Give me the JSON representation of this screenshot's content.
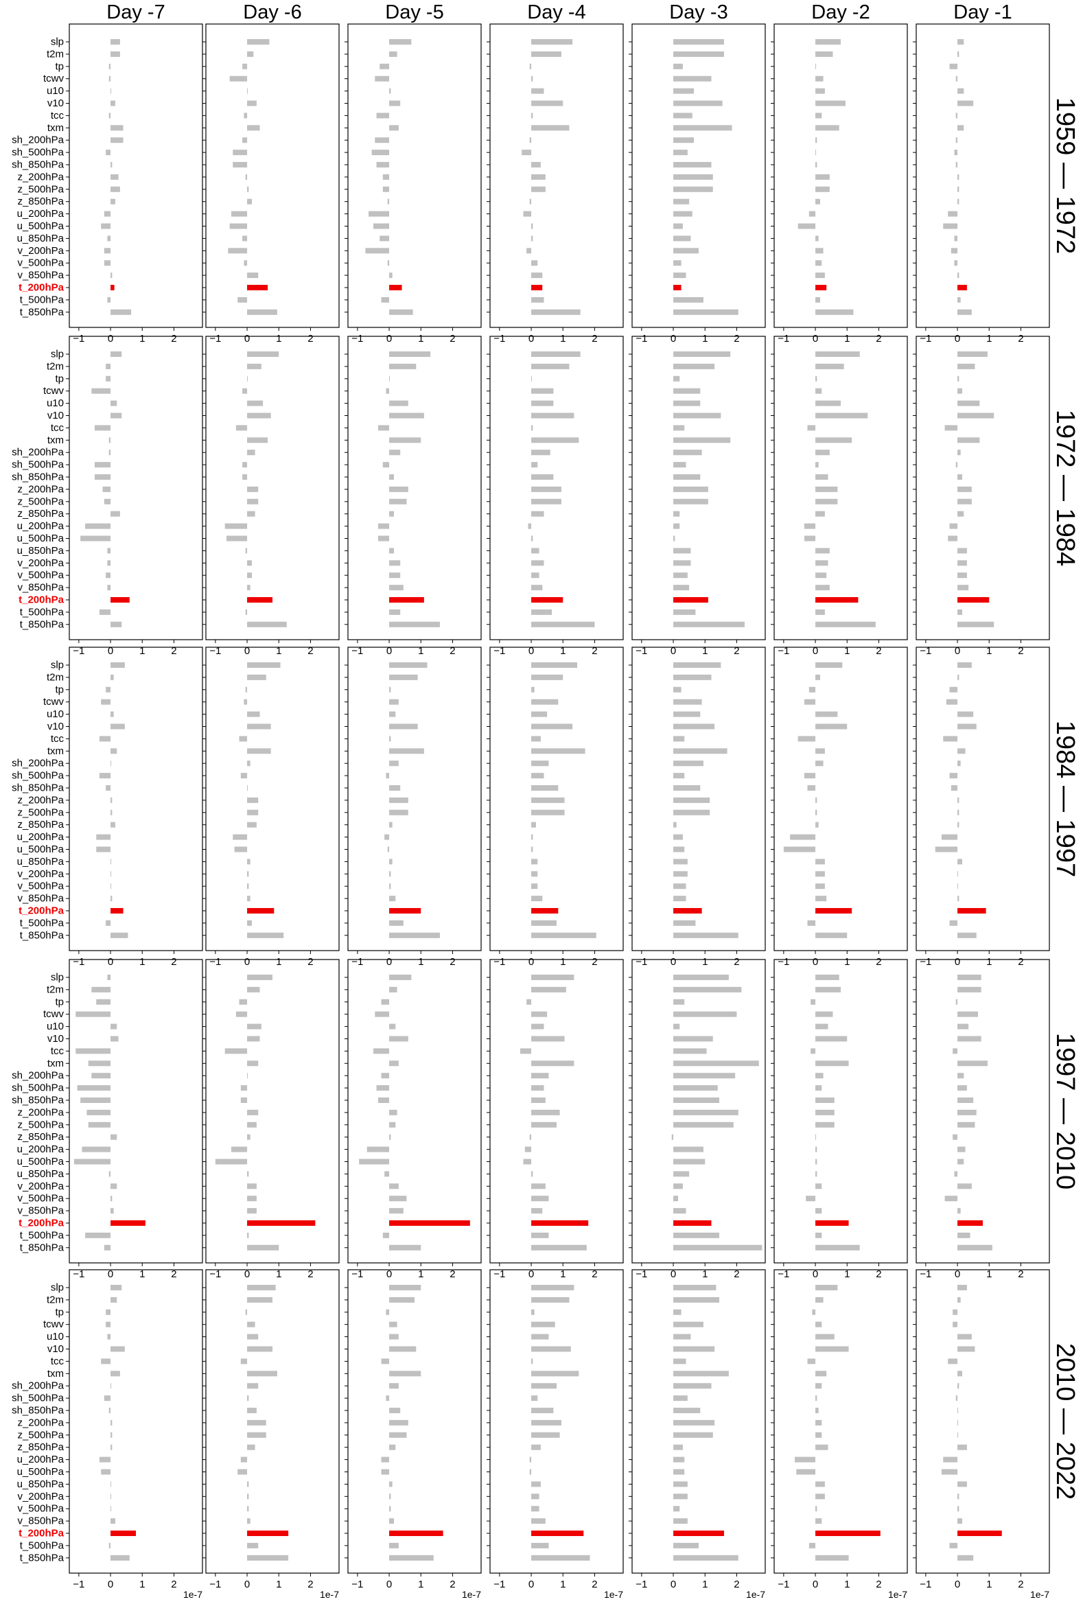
{
  "chart_data": {
    "type": "bar",
    "orientation": "horizontal",
    "columns": [
      "Day -7",
      "Day -6",
      "Day -5",
      "Day -4",
      "Day -3",
      "Day -2",
      "Day -1"
    ],
    "rows": [
      "1959 — 1972",
      "1972 — 1984",
      "1984 — 1997",
      "1997 — 2010",
      "2010 — 2022"
    ],
    "categories": [
      "slp",
      "t2m",
      "tp",
      "tcwv",
      "u10",
      "v10",
      "tcc",
      "txm",
      "sh_200hPa",
      "sh_500hPa",
      "sh_850hPa",
      "z_200hPa",
      "z_500hPa",
      "z_850hPa",
      "u_200hPa",
      "u_500hPa",
      "u_850hPa",
      "v_200hPa",
      "v_500hPa",
      "v_850hPa",
      "t_200hPa",
      "t_500hPa",
      "t_850hPa"
    ],
    "highlight_category": "t_200hPa",
    "xlim": [
      -1.3,
      2.9
    ],
    "xticks": [
      -1,
      0,
      1,
      2
    ],
    "x_scale_label": "1e-7",
    "colors": {
      "default": "#c0c0c0",
      "highlight": "#ee0000"
    },
    "values": [
      [
        [
          0.3,
          0.3,
          -0.05,
          -0.05,
          0.0,
          0.15,
          -0.05,
          0.4,
          0.4,
          -0.15,
          0.05,
          0.25,
          0.3,
          0.15,
          -0.2,
          -0.3,
          -0.1,
          -0.2,
          -0.2,
          0.05,
          0.12,
          -0.1,
          0.65
        ],
        [
          0.7,
          0.2,
          -0.15,
          -0.55,
          0.0,
          0.3,
          -0.1,
          0.4,
          -0.15,
          -0.45,
          -0.45,
          -0.05,
          0.05,
          0.15,
          -0.5,
          -0.55,
          -0.15,
          -0.6,
          -0.1,
          0.35,
          0.65,
          -0.3,
          0.95
        ],
        [
          0.7,
          0.25,
          -0.3,
          -0.45,
          0.05,
          0.35,
          -0.4,
          0.3,
          -0.45,
          -0.55,
          -0.4,
          -0.2,
          -0.2,
          -0.05,
          -0.65,
          -0.5,
          -0.3,
          -0.75,
          -0.05,
          0.1,
          0.4,
          -0.25,
          0.75
        ],
        [
          1.3,
          0.95,
          -0.05,
          0.05,
          0.4,
          1.0,
          0.05,
          1.2,
          -0.05,
          -0.3,
          0.3,
          0.45,
          0.45,
          -0.05,
          -0.25,
          0.05,
          0.05,
          -0.15,
          0.2,
          0.35,
          0.35,
          0.4,
          1.55
        ],
        [
          1.6,
          1.6,
          0.3,
          1.2,
          0.65,
          1.55,
          0.6,
          1.85,
          0.65,
          0.45,
          1.2,
          1.25,
          1.25,
          0.5,
          0.6,
          0.3,
          0.55,
          0.8,
          0.25,
          0.4,
          0.25,
          0.95,
          2.05
        ],
        [
          0.8,
          0.55,
          0.0,
          0.25,
          0.3,
          0.95,
          0.2,
          0.75,
          0.05,
          0.0,
          0.05,
          0.45,
          0.45,
          0.15,
          -0.2,
          -0.55,
          0.1,
          0.25,
          0.2,
          0.3,
          0.35,
          0.15,
          1.2
        ],
        [
          0.2,
          0.05,
          -0.25,
          -0.05,
          0.2,
          0.5,
          -0.05,
          0.2,
          -0.05,
          -0.1,
          -0.05,
          0.05,
          0.05,
          0.05,
          -0.3,
          -0.45,
          -0.1,
          -0.2,
          -0.1,
          0.05,
          0.3,
          0.1,
          0.45
        ]
      ],
      [
        [
          0.35,
          -0.15,
          -0.15,
          -0.6,
          0.2,
          0.35,
          -0.5,
          -0.05,
          -0.05,
          -0.5,
          -0.5,
          -0.25,
          -0.2,
          0.3,
          -0.8,
          -0.95,
          -0.1,
          -0.1,
          -0.15,
          -0.1,
          0.6,
          -0.35,
          0.35
        ],
        [
          1.0,
          0.45,
          0.0,
          -0.15,
          0.5,
          0.75,
          -0.35,
          0.65,
          0.25,
          -0.15,
          -0.15,
          0.35,
          0.35,
          0.25,
          -0.7,
          -0.65,
          -0.05,
          0.15,
          0.15,
          0.1,
          0.8,
          -0.05,
          1.25
        ],
        [
          1.3,
          0.85,
          0.0,
          -0.1,
          0.6,
          1.1,
          -0.35,
          1.0,
          0.35,
          -0.2,
          0.15,
          0.6,
          0.55,
          0.15,
          -0.35,
          -0.35,
          0.15,
          0.35,
          0.35,
          0.45,
          1.1,
          0.35,
          1.6
        ],
        [
          1.55,
          1.2,
          0.0,
          0.7,
          0.7,
          1.35,
          0.05,
          1.5,
          0.6,
          0.2,
          0.7,
          0.95,
          0.95,
          0.4,
          -0.1,
          0.05,
          0.25,
          0.4,
          0.25,
          0.35,
          1.0,
          0.65,
          2.0
        ],
        [
          1.8,
          1.3,
          0.2,
          0.85,
          0.85,
          1.5,
          0.35,
          1.8,
          0.9,
          0.4,
          0.85,
          1.1,
          1.1,
          0.2,
          0.2,
          0.05,
          0.55,
          0.55,
          0.45,
          0.5,
          1.1,
          0.7,
          2.25
        ],
        [
          1.4,
          0.9,
          0.05,
          0.2,
          0.8,
          1.65,
          -0.25,
          1.15,
          0.45,
          0.1,
          0.4,
          0.7,
          0.7,
          0.3,
          -0.35,
          -0.35,
          0.45,
          0.4,
          0.35,
          0.45,
          1.35,
          0.3,
          1.9
        ],
        [
          0.95,
          0.55,
          0.05,
          0.15,
          0.7,
          1.15,
          -0.4,
          0.7,
          0.1,
          -0.05,
          0.15,
          0.45,
          0.45,
          0.2,
          -0.25,
          -0.3,
          0.3,
          0.3,
          0.3,
          0.35,
          1.0,
          0.15,
          1.15
        ]
      ],
      [
        [
          0.45,
          0.1,
          -0.15,
          -0.3,
          0.1,
          0.45,
          -0.35,
          0.2,
          0.0,
          -0.35,
          -0.15,
          0.05,
          0.05,
          0.15,
          -0.45,
          -0.45,
          0.0,
          0.0,
          0.0,
          0.05,
          0.4,
          -0.15,
          0.55
        ],
        [
          1.05,
          0.6,
          -0.05,
          -0.1,
          0.4,
          0.75,
          -0.25,
          0.75,
          0.1,
          -0.2,
          0.0,
          0.35,
          0.35,
          0.3,
          -0.45,
          -0.4,
          0.1,
          0.05,
          0.05,
          0.1,
          0.85,
          0.15,
          1.15
        ],
        [
          1.2,
          0.9,
          0.05,
          0.3,
          0.2,
          0.9,
          0.05,
          1.1,
          0.3,
          -0.1,
          0.35,
          0.6,
          0.6,
          0.1,
          -0.15,
          -0.05,
          0.1,
          0.05,
          0.05,
          0.2,
          1.0,
          0.45,
          1.6
        ],
        [
          1.45,
          1.0,
          0.1,
          0.85,
          0.5,
          1.3,
          0.3,
          1.7,
          0.55,
          0.4,
          0.85,
          1.05,
          1.05,
          0.15,
          0.05,
          0.05,
          0.2,
          0.2,
          0.2,
          0.35,
          0.85,
          0.8,
          2.05
        ],
        [
          1.5,
          1.2,
          0.25,
          0.9,
          0.85,
          1.3,
          0.35,
          1.7,
          0.95,
          0.35,
          0.85,
          1.15,
          1.15,
          0.1,
          0.3,
          0.35,
          0.45,
          0.45,
          0.4,
          0.4,
          0.9,
          0.7,
          2.05
        ],
        [
          0.85,
          0.15,
          -0.2,
          -0.35,
          0.7,
          1.0,
          -0.55,
          0.3,
          0.25,
          -0.35,
          -0.25,
          0.05,
          0.05,
          0.1,
          -0.8,
          -1.0,
          0.3,
          0.3,
          0.3,
          0.35,
          1.15,
          -0.25,
          1.0
        ],
        [
          0.45,
          0.05,
          -0.25,
          -0.35,
          0.5,
          0.6,
          -0.45,
          0.25,
          0.1,
          -0.25,
          -0.2,
          0.05,
          0.05,
          0.05,
          -0.5,
          -0.7,
          0.15,
          0.0,
          0.0,
          0.05,
          0.9,
          -0.25,
          0.6
        ]
      ],
      [
        [
          -0.1,
          -0.6,
          -0.45,
          -1.1,
          0.2,
          0.25,
          -1.1,
          -0.7,
          -0.6,
          -1.05,
          -0.95,
          -0.75,
          -0.7,
          0.2,
          -0.9,
          -1.15,
          -0.05,
          0.2,
          0.05,
          0.1,
          1.1,
          -0.8,
          -0.2
        ],
        [
          0.8,
          0.4,
          -0.25,
          -0.35,
          0.45,
          0.4,
          -0.7,
          0.35,
          0.0,
          -0.2,
          -0.2,
          0.35,
          0.3,
          0.1,
          -0.5,
          -1.0,
          0.05,
          0.3,
          0.3,
          0.3,
          2.15,
          0.05,
          1.0
        ],
        [
          0.7,
          0.25,
          -0.25,
          -0.45,
          0.2,
          0.6,
          -0.5,
          0.3,
          -0.25,
          -0.4,
          -0.35,
          0.25,
          0.2,
          0.05,
          -0.7,
          -0.95,
          -0.15,
          0.3,
          0.55,
          0.45,
          2.55,
          -0.2,
          1.0
        ],
        [
          1.35,
          1.1,
          -0.15,
          0.5,
          0.4,
          1.05,
          -0.35,
          1.35,
          0.55,
          0.4,
          0.45,
          0.9,
          0.8,
          -0.05,
          -0.2,
          -0.25,
          0.05,
          0.45,
          0.55,
          0.35,
          1.8,
          0.55,
          1.75
        ],
        [
          1.75,
          2.15,
          0.35,
          2.0,
          0.2,
          1.25,
          1.05,
          2.7,
          1.95,
          1.4,
          1.45,
          2.05,
          1.9,
          -0.05,
          0.95,
          1.0,
          0.5,
          0.3,
          0.15,
          0.4,
          1.2,
          1.45,
          2.8
        ],
        [
          0.75,
          0.8,
          -0.15,
          0.55,
          0.4,
          1.0,
          -0.15,
          1.05,
          0.25,
          0.2,
          0.6,
          0.6,
          0.6,
          0.0,
          0.05,
          0.05,
          0.05,
          0.2,
          -0.3,
          0.2,
          1.05,
          0.2,
          1.4
        ],
        [
          0.75,
          0.75,
          -0.05,
          0.65,
          0.35,
          0.75,
          -0.15,
          0.95,
          0.2,
          0.3,
          0.5,
          0.6,
          0.55,
          -0.15,
          0.25,
          0.2,
          -0.1,
          0.45,
          -0.4,
          0.1,
          0.8,
          0.4,
          1.1
        ]
      ],
      [
        [
          0.35,
          0.2,
          -0.15,
          -0.15,
          -0.1,
          0.45,
          -0.3,
          0.3,
          0.0,
          -0.2,
          -0.05,
          0.05,
          0.05,
          0.05,
          -0.35,
          -0.3,
          0.0,
          0.0,
          0.0,
          0.15,
          0.8,
          -0.05,
          0.6
        ],
        [
          0.9,
          0.8,
          -0.05,
          0.25,
          0.35,
          0.8,
          -0.2,
          0.95,
          0.35,
          0.05,
          0.3,
          0.6,
          0.6,
          0.25,
          -0.2,
          -0.3,
          0.05,
          0.05,
          0.05,
          0.1,
          1.3,
          0.35,
          1.3
        ],
        [
          1.0,
          0.8,
          -0.1,
          0.25,
          0.3,
          0.85,
          -0.25,
          1.0,
          0.3,
          -0.1,
          0.35,
          0.6,
          0.55,
          0.2,
          -0.25,
          -0.25,
          0.1,
          0.05,
          0.05,
          0.15,
          1.7,
          0.3,
          1.4
        ],
        [
          1.35,
          1.2,
          0.1,
          0.75,
          0.55,
          1.25,
          0.05,
          1.5,
          0.8,
          0.2,
          0.7,
          0.95,
          0.9,
          0.3,
          -0.05,
          -0.05,
          0.3,
          0.25,
          0.25,
          0.45,
          1.65,
          0.55,
          1.85
        ],
        [
          1.35,
          1.45,
          0.25,
          0.95,
          0.55,
          1.3,
          0.4,
          1.75,
          1.2,
          0.45,
          0.85,
          1.3,
          1.25,
          0.3,
          0.35,
          0.35,
          0.45,
          0.45,
          0.2,
          0.45,
          1.6,
          0.8,
          2.05
        ],
        [
          0.7,
          0.25,
          -0.1,
          0.2,
          0.6,
          1.05,
          -0.25,
          0.35,
          0.2,
          0.05,
          0.1,
          0.2,
          0.2,
          0.4,
          -0.65,
          -0.6,
          0.3,
          0.3,
          0.05,
          0.2,
          2.05,
          -0.2,
          1.05
        ],
        [
          0.3,
          0.1,
          -0.15,
          -0.15,
          0.45,
          0.55,
          -0.3,
          0.15,
          0.05,
          -0.05,
          0.0,
          0.0,
          0.0,
          0.3,
          -0.45,
          -0.5,
          0.3,
          0.05,
          0.05,
          0.15,
          1.4,
          -0.25,
          0.5
        ]
      ]
    ]
  }
}
